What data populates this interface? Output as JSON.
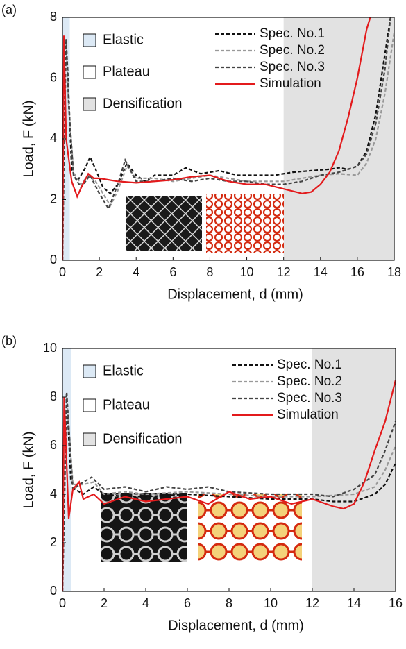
{
  "chart_data": [
    {
      "type": "line",
      "panel_label": "(a)",
      "xlabel": "Displacement, d (mm)",
      "ylabel": "Load, F (kN)",
      "xlim": [
        0,
        18
      ],
      "xticks": [
        0,
        2,
        4,
        6,
        8,
        10,
        12,
        14,
        16,
        18
      ],
      "ylim": [
        0,
        8
      ],
      "yticks": [
        0,
        2,
        4,
        6,
        8
      ],
      "regions": [
        {
          "name": "Elastic",
          "range": [
            0,
            0.4
          ],
          "color": "#dce9f5"
        },
        {
          "name": "Plateau",
          "range": [
            0.4,
            12
          ],
          "color": "#ffffff"
        },
        {
          "name": "Densification",
          "range": [
            12,
            18
          ],
          "color": "#e2e2e2"
        }
      ],
      "series": [
        {
          "name": "Spec. No.1",
          "color": "#111111",
          "line_style": "dashed",
          "x": [
            0,
            0.1,
            0.2,
            0.3,
            0.5,
            0.8,
            1.2,
            1.5,
            1.8,
            2.2,
            2.6,
            3,
            3.5,
            4,
            4.5,
            5,
            6,
            6.7,
            7.5,
            8.5,
            9.5,
            10.5,
            11.5,
            12.5,
            13.5,
            14.5,
            15,
            15.5,
            16,
            16.5,
            17,
            17.5,
            17.8
          ],
          "values": [
            0,
            4,
            7.2,
            6,
            3,
            2.6,
            3,
            3.4,
            3,
            2.4,
            2.2,
            2.5,
            3.2,
            2.8,
            2.6,
            2.8,
            2.8,
            3.05,
            2.85,
            2.95,
            2.8,
            2.8,
            2.8,
            2.9,
            2.95,
            3,
            3.05,
            3,
            3.1,
            3.6,
            4.8,
            6.8,
            8
          ]
        },
        {
          "name": "Spec. No.2",
          "color": "#999999",
          "line_style": "dashed",
          "x": [
            0,
            0.1,
            0.2,
            0.35,
            0.6,
            1,
            1.4,
            1.8,
            2.2,
            2.6,
            3,
            3.5,
            4,
            5,
            6,
            7,
            8,
            9,
            10,
            11,
            12,
            13,
            14,
            15,
            16,
            16.5,
            17,
            17.5,
            18
          ],
          "values": [
            0,
            4,
            7,
            5,
            2.9,
            2.5,
            2.8,
            2.6,
            2.2,
            1.8,
            2.3,
            3.1,
            2.7,
            2.7,
            2.6,
            2.7,
            2.8,
            2.7,
            2.6,
            2.6,
            2.6,
            2.7,
            2.8,
            2.85,
            2.8,
            3.2,
            4,
            5.5,
            7.5
          ]
        },
        {
          "name": "Spec. No.3",
          "color": "#444444",
          "line_style": "dashed",
          "x": [
            0,
            0.1,
            0.2,
            0.35,
            0.6,
            1,
            1.5,
            2,
            2.5,
            3,
            3.4,
            4,
            5,
            6,
            7,
            8,
            9,
            10,
            11,
            12,
            13,
            14,
            15,
            16,
            16.5,
            17,
            17.5,
            17.8
          ],
          "values": [
            0,
            4.5,
            7.3,
            5,
            2.8,
            2.4,
            2.8,
            2.2,
            1.7,
            2.5,
            3.3,
            2.6,
            2.6,
            2.7,
            2.6,
            2.7,
            2.6,
            2.6,
            2.5,
            2.5,
            2.6,
            2.8,
            2.9,
            3.1,
            3.5,
            4.5,
            6.3,
            8
          ]
        },
        {
          "name": "Simulation",
          "color": "#e31a1c",
          "line_style": "solid",
          "x": [
            0,
            0.08,
            0.2,
            0.5,
            0.8,
            1.1,
            1.4,
            1.7,
            2,
            3,
            4,
            5,
            6,
            7,
            8,
            9,
            10,
            11,
            12,
            13,
            13.5,
            14,
            14.5,
            15,
            15.5,
            16,
            16.5,
            16.7
          ],
          "values": [
            0,
            7.4,
            4,
            2.6,
            2.1,
            2.5,
            2.85,
            2.7,
            2.7,
            2.6,
            2.55,
            2.6,
            2.65,
            2.75,
            2.8,
            2.6,
            2.5,
            2.5,
            2.35,
            2.2,
            2.25,
            2.5,
            2.9,
            3.6,
            4.7,
            6,
            7.6,
            8
          ]
        }
      ]
    },
    {
      "type": "line",
      "panel_label": "(b)",
      "xlabel": "Displacement, d (mm)",
      "ylabel": "Load, F (kN)",
      "xlim": [
        0,
        16
      ],
      "xticks": [
        0,
        2,
        4,
        6,
        8,
        10,
        12,
        14,
        16
      ],
      "ylim": [
        0,
        10
      ],
      "yticks": [
        0,
        2,
        4,
        6,
        8,
        10
      ],
      "regions": [
        {
          "name": "Elastic",
          "range": [
            0,
            0.4
          ],
          "color": "#dce9f5"
        },
        {
          "name": "Plateau",
          "range": [
            0.4,
            12
          ],
          "color": "#ffffff"
        },
        {
          "name": "Densification",
          "range": [
            12,
            16
          ],
          "color": "#e2e2e2"
        }
      ],
      "series": [
        {
          "name": "Spec. No.1",
          "color": "#111111",
          "line_style": "dashed",
          "x": [
            0,
            0.2,
            0.4,
            0.6,
            1,
            1.5,
            2,
            3,
            4,
            6,
            8,
            10,
            12,
            13,
            14,
            15,
            15.5,
            16
          ],
          "values": [
            0,
            8.2,
            4.6,
            4.2,
            4,
            4.3,
            4,
            3.9,
            3.9,
            4,
            3.9,
            3.8,
            3.8,
            3.7,
            3.7,
            4,
            4.4,
            5.3
          ]
        },
        {
          "name": "Spec. No.2",
          "color": "#999999",
          "line_style": "dashed",
          "x": [
            0,
            0.2,
            0.5,
            1,
            1.5,
            2,
            3,
            4,
            6,
            8,
            10,
            12,
            14,
            15,
            15.5,
            16
          ],
          "values": [
            0,
            8,
            4.4,
            4.4,
            4.5,
            4,
            4.1,
            4,
            4.1,
            4,
            3.9,
            3.9,
            4,
            4.3,
            5,
            6
          ]
        },
        {
          "name": "Spec. No.3",
          "color": "#444444",
          "line_style": "dashed",
          "x": [
            0,
            0.2,
            0.5,
            1,
            1.4,
            2,
            3,
            4,
            5,
            6,
            7,
            8,
            10,
            12,
            13,
            14,
            15,
            15.5,
            16
          ],
          "values": [
            0,
            8.2,
            4.2,
            4.5,
            4.7,
            4.2,
            4.3,
            4.1,
            4.3,
            4.2,
            4.3,
            4.1,
            4,
            4,
            3.9,
            4.2,
            4.8,
            5.8,
            7
          ]
        },
        {
          "name": "Simulation",
          "color": "#e31a1c",
          "line_style": "solid",
          "x": [
            0,
            0.08,
            0.3,
            0.5,
            0.8,
            1,
            1.5,
            2,
            3,
            4,
            5,
            6,
            7,
            8,
            9,
            10,
            11,
            12,
            13,
            13.5,
            14,
            14.5,
            15,
            15.5,
            16
          ],
          "values": [
            0,
            8,
            3,
            4.2,
            4.5,
            3.8,
            4,
            3.6,
            3.9,
            3.7,
            3.8,
            3.9,
            3.6,
            4.1,
            3.8,
            3.9,
            3.6,
            3.8,
            3.5,
            3.4,
            3.6,
            4.5,
            5.8,
            7,
            8.7
          ]
        }
      ]
    }
  ]
}
